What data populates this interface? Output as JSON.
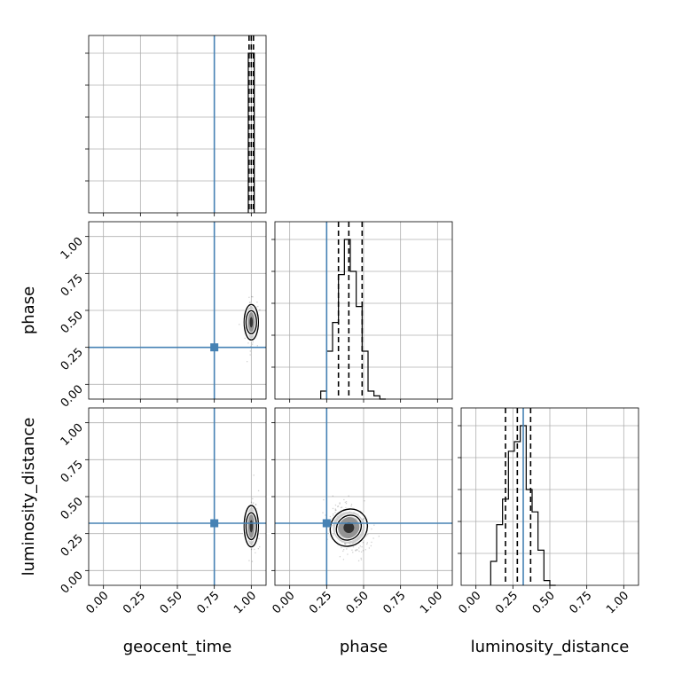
{
  "chart_data": {
    "type": "corner",
    "parameters": [
      "geocent_time",
      "phase",
      "luminosity_distance"
    ],
    "axis_range": [
      -0.1,
      1.1
    ],
    "tick_labels": [
      "0.00",
      "0.25",
      "0.50",
      "0.75",
      "1.00"
    ],
    "tick_values": [
      0,
      0.25,
      0.5,
      0.75,
      1.0
    ],
    "grid": true,
    "truth_color": "#4682b4",
    "truths": {
      "geocent_time": 0.75,
      "phase": 0.25,
      "luminosity_distance": 0.32
    },
    "marginals": {
      "geocent_time": {
        "bins": [
          [
            0.98,
            1.02
          ]
        ],
        "counts": [
          1.0
        ],
        "quantiles": [
          0.985,
          1.0,
          1.015
        ]
      },
      "phase": {
        "bins": [
          [
            0.21,
            0.25
          ],
          [
            0.25,
            0.29
          ],
          [
            0.29,
            0.33
          ],
          [
            0.33,
            0.37
          ],
          [
            0.37,
            0.41
          ],
          [
            0.41,
            0.45
          ],
          [
            0.45,
            0.49
          ],
          [
            0.49,
            0.53
          ],
          [
            0.53,
            0.57
          ],
          [
            0.57,
            0.61
          ],
          [
            0.61,
            0.65
          ]
        ],
        "counts": [
          0.05,
          0.3,
          0.48,
          0.78,
          1.0,
          0.8,
          0.58,
          0.3,
          0.05,
          0.02,
          0
        ],
        "quantiles": [
          0.33,
          0.4,
          0.49
        ]
      },
      "luminosity_distance": {
        "bins": [
          [
            0.1,
            0.14
          ],
          [
            0.14,
            0.18
          ],
          [
            0.18,
            0.22
          ],
          [
            0.22,
            0.26
          ],
          [
            0.26,
            0.3
          ],
          [
            0.3,
            0.34
          ],
          [
            0.34,
            0.38
          ],
          [
            0.38,
            0.42
          ],
          [
            0.42,
            0.46
          ],
          [
            0.46,
            0.5
          ],
          [
            0.5,
            0.54
          ]
        ],
        "counts": [
          0.15,
          0.38,
          0.54,
          0.84,
          0.9,
          1.0,
          0.6,
          0.46,
          0.22,
          0.03,
          0
        ],
        "quantiles": [
          0.2,
          0.28,
          0.37
        ]
      }
    },
    "joint": [
      {
        "x": "geocent_time",
        "y": "phase",
        "center": [
          1.0,
          0.42
        ],
        "sigma": [
          0.005,
          0.06
        ]
      },
      {
        "x": "geocent_time",
        "y": "luminosity_distance",
        "center": [
          1.0,
          0.3
        ],
        "sigma": [
          0.005,
          0.07
        ]
      },
      {
        "x": "phase",
        "y": "luminosity_distance",
        "center": [
          0.4,
          0.29
        ],
        "sigma": [
          0.06,
          0.06
        ],
        "rho": -0.4
      }
    ]
  }
}
